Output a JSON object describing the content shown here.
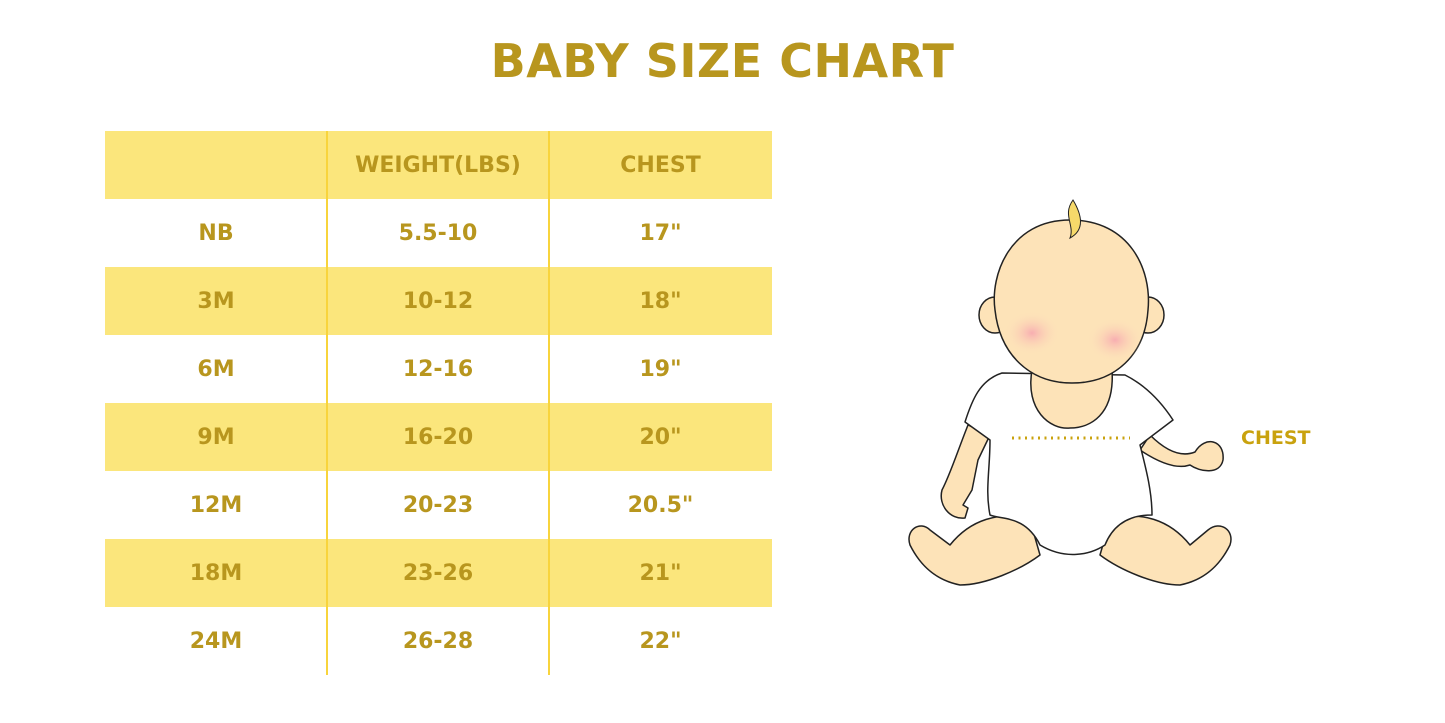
{
  "title": "BABY SIZE CHART",
  "table": {
    "headers": [
      "",
      "WEIGHT(LBS)",
      "CHEST"
    ],
    "rows": [
      [
        "NB",
        "5.5-10",
        "17\""
      ],
      [
        "3M",
        "10-12",
        "18\""
      ],
      [
        "6M",
        "12-16",
        "19\""
      ],
      [
        "9M",
        "16-20",
        "20\""
      ],
      [
        "12M",
        "20-23",
        "20.5\""
      ],
      [
        "18M",
        "23-26",
        "21\""
      ],
      [
        "24M",
        "26-28",
        "22\""
      ]
    ]
  },
  "illustration": {
    "chest_label": "CHEST",
    "icon": "baby-illustration"
  },
  "colors": {
    "text": "#b8961e",
    "band": "#fbe67c",
    "divider": "#f8d43c",
    "skin": "#fde3b8"
  }
}
